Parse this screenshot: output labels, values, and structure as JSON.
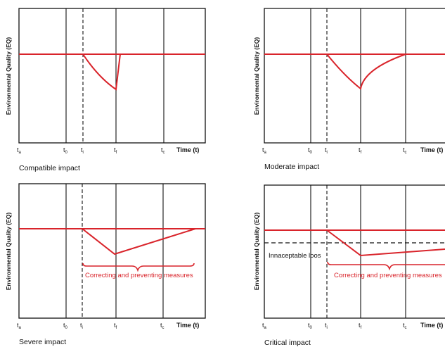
{
  "colors": {
    "impact": "#d9242b",
    "axis": "#111111",
    "background": "#ffffff"
  },
  "y_axis_label": "Environmental Quality (EQ)",
  "x_axis_label": "Time (t)",
  "tick_labels": {
    "ta": {
      "main": "t",
      "sub": "a"
    },
    "t0": {
      "main": "t",
      "sub": "0"
    },
    "ti": {
      "main": "t",
      "sub": "i"
    },
    "tf": {
      "main": "t",
      "sub": "f"
    },
    "tc": {
      "main": "t",
      "sub": "c"
    }
  },
  "panels": [
    {
      "id": "compatible",
      "title": "Compatible impact"
    },
    {
      "id": "moderate",
      "title": "Moderate impact"
    },
    {
      "id": "severe",
      "title": "Severe impact",
      "brace_label": "Correcting and preventing measures"
    },
    {
      "id": "critical",
      "title": "Critical impact",
      "brace_label": "Correcting and preventing measures",
      "threshold_label": "Innaceptable loos"
    }
  ]
}
